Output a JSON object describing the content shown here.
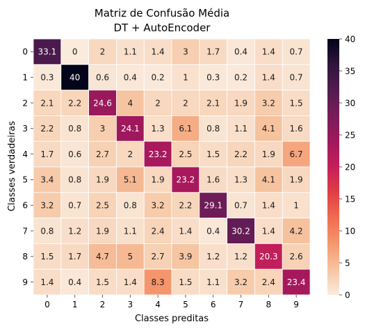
{
  "chart_data": {
    "type": "heatmap",
    "title_line1": "Matriz de Confusão Média",
    "title_line2": "DT + AutoEncoder",
    "xlabel": "Classes preditas",
    "ylabel": "Classes verdadeiras",
    "x_categories": [
      "0",
      "1",
      "2",
      "3",
      "4",
      "5",
      "6",
      "7",
      "8",
      "9"
    ],
    "y_categories": [
      "0",
      "1",
      "2",
      "3",
      "4",
      "5",
      "6",
      "7",
      "8",
      "9"
    ],
    "values": [
      [
        33.1,
        0,
        2,
        1.1,
        1.4,
        3,
        1.7,
        0.4,
        1.4,
        0.7
      ],
      [
        0.3,
        40,
        0.6,
        0.4,
        0.2,
        1,
        0.3,
        0.2,
        1.4,
        0.7
      ],
      [
        2.1,
        2.2,
        24.6,
        4,
        2,
        2,
        2.1,
        1.9,
        3.2,
        1.5
      ],
      [
        2.2,
        0.8,
        3,
        24.1,
        1.3,
        6.1,
        0.8,
        1.1,
        4.1,
        1.6
      ],
      [
        1.7,
        0.6,
        2.7,
        2,
        23.2,
        2.5,
        1.5,
        2.2,
        1.9,
        6.7
      ],
      [
        3.4,
        0.8,
        1.9,
        5.1,
        1.9,
        23.2,
        1.6,
        1.3,
        4.1,
        1.9
      ],
      [
        3.2,
        0.7,
        2.5,
        0.8,
        3.2,
        2.2,
        29.1,
        0.7,
        1.4,
        1
      ],
      [
        0.8,
        1.2,
        1.9,
        1.1,
        2.4,
        1.4,
        0.4,
        30.2,
        1.4,
        4.2
      ],
      [
        1.5,
        1.7,
        4.7,
        5,
        2.7,
        3.9,
        1.2,
        1.2,
        20.3,
        2.6
      ],
      [
        1.4,
        0.4,
        1.5,
        1.4,
        8.3,
        1.5,
        1.1,
        3.2,
        2.4,
        23.4
      ]
    ],
    "colorbar": {
      "min": 0,
      "max": 40,
      "ticks": [
        0,
        5,
        10,
        15,
        20,
        25,
        30,
        35,
        40
      ],
      "colormap": "rocket_r"
    },
    "grid": false,
    "legend": "colorbar-right"
  }
}
